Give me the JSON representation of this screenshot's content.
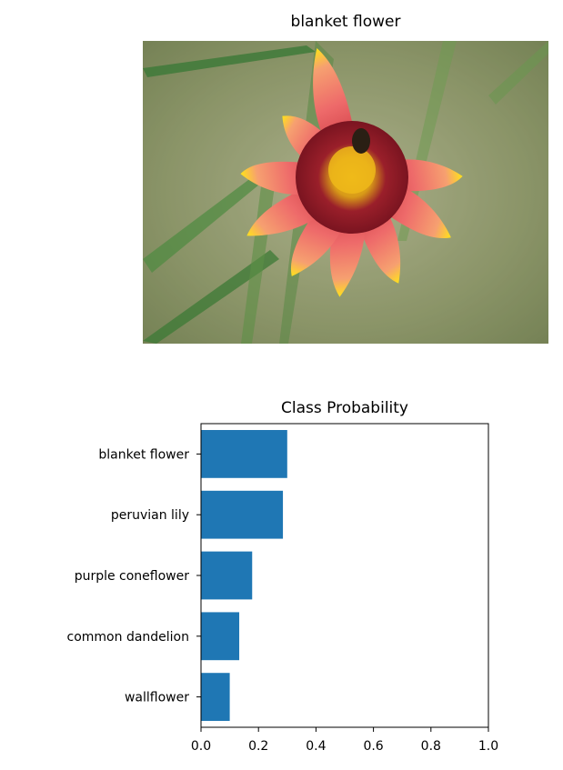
{
  "image_panel": {
    "title": "blanket flower"
  },
  "chart_data": {
    "type": "bar",
    "orientation": "horizontal",
    "title": "Class Probability",
    "categories": [
      "blanket flower",
      "peruvian lily",
      "purple coneflower",
      "common dandelion",
      "wallflower"
    ],
    "values": [
      0.3,
      0.285,
      0.178,
      0.133,
      0.1
    ],
    "xlim": [
      0.0,
      1.0
    ],
    "xticks": [
      "0.0",
      "0.2",
      "0.4",
      "0.6",
      "0.8",
      "1.0"
    ],
    "xlabel": "",
    "ylabel": "",
    "grid": false,
    "bar_color": "#1f77b4"
  }
}
